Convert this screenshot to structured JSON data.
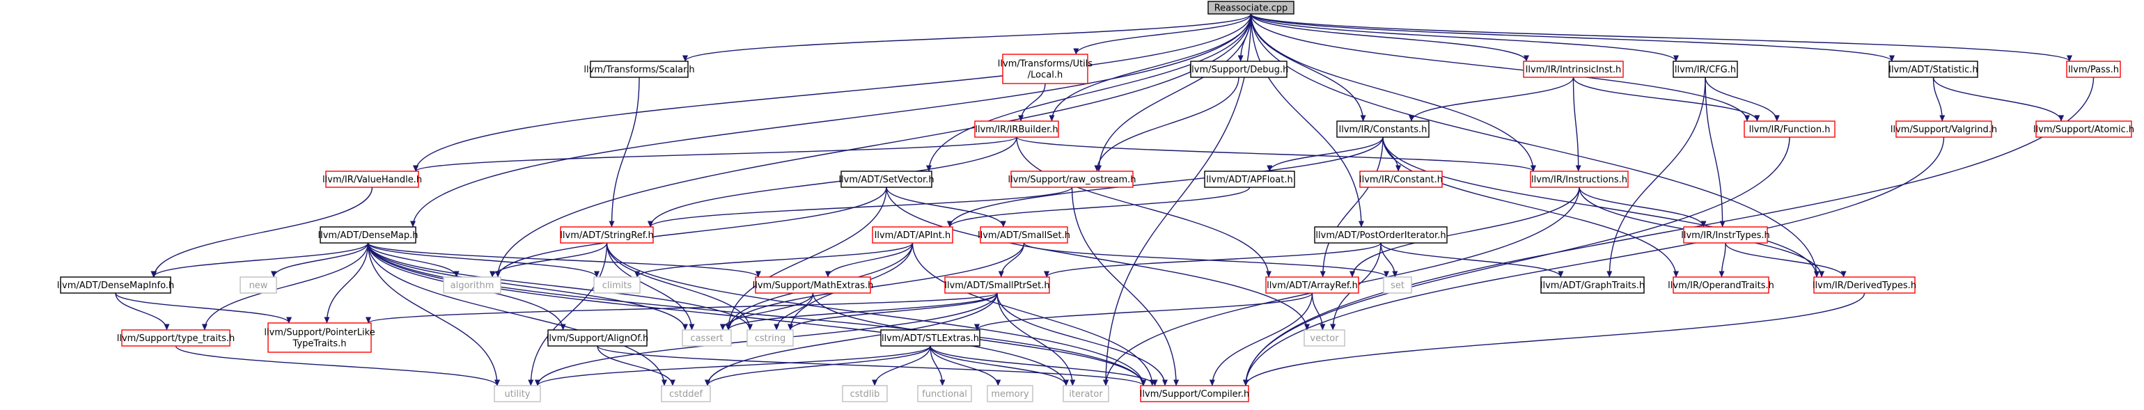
{
  "colors": {
    "edge": "#191970",
    "root_fill": "#bfbfbf",
    "border_black": "#000000",
    "border_red": "#ff0000",
    "border_grey": "#bfbfbf",
    "text_normal": "#000000",
    "text_grey": "#9a9a9a"
  },
  "nodes": [
    {
      "id": "root",
      "label": "Reassociate.cpp",
      "style": "root"
    },
    {
      "id": "scalar",
      "label": "llvm/Transforms/Scalar.h",
      "style": "black"
    },
    {
      "id": "local",
      "label": "llvm/Transforms/Utils/Local.h",
      "lines": [
        "llvm/Transforms/Utils",
        "/Local.h"
      ],
      "style": "red"
    },
    {
      "id": "debug",
      "label": "llvm/Support/Debug.h",
      "style": "black"
    },
    {
      "id": "intrinsic",
      "label": "llvm/IR/IntrinsicInst.h",
      "style": "red"
    },
    {
      "id": "cfg",
      "label": "llvm/IR/CFG.h",
      "style": "black"
    },
    {
      "id": "statistic",
      "label": "llvm/ADT/Statistic.h",
      "style": "black"
    },
    {
      "id": "pass",
      "label": "llvm/Pass.h",
      "style": "red"
    },
    {
      "id": "irbuilder",
      "label": "llvm/IR/IRBuilder.h",
      "style": "red"
    },
    {
      "id": "constants",
      "label": "llvm/IR/Constants.h",
      "style": "black"
    },
    {
      "id": "function",
      "label": "llvm/IR/Function.h",
      "style": "red"
    },
    {
      "id": "valgrind",
      "label": "llvm/Support/Valgrind.h",
      "style": "red"
    },
    {
      "id": "atomic",
      "label": "llvm/Support/Atomic.h",
      "style": "red"
    },
    {
      "id": "valuehandle",
      "label": "llvm/IR/ValueHandle.h",
      "style": "red"
    },
    {
      "id": "setvector",
      "label": "llvm/ADT/SetVector.h",
      "style": "black"
    },
    {
      "id": "rawostream",
      "label": "llvm/Support/raw_ostream.h",
      "style": "red"
    },
    {
      "id": "apfloat",
      "label": "llvm/ADT/APFloat.h",
      "style": "black"
    },
    {
      "id": "constant",
      "label": "llvm/IR/Constant.h",
      "style": "red"
    },
    {
      "id": "instructions",
      "label": "llvm/IR/Instructions.h",
      "style": "red"
    },
    {
      "id": "densemap",
      "label": "llvm/ADT/DenseMap.h",
      "style": "black"
    },
    {
      "id": "stringref",
      "label": "llvm/ADT/StringRef.h",
      "style": "red"
    },
    {
      "id": "apint",
      "label": "llvm/ADT/APInt.h",
      "style": "red"
    },
    {
      "id": "smallset",
      "label": "llvm/ADT/SmallSet.h",
      "style": "red"
    },
    {
      "id": "postorder",
      "label": "llvm/ADT/PostOrderIterator.h",
      "style": "black"
    },
    {
      "id": "instrtypes",
      "label": "llvm/IR/InstrTypes.h",
      "style": "red"
    },
    {
      "id": "densemapinfo",
      "label": "llvm/ADT/DenseMapInfo.h",
      "style": "black"
    },
    {
      "id": "new",
      "label": "new",
      "style": "grey"
    },
    {
      "id": "algorithm",
      "label": "algorithm",
      "style": "grey"
    },
    {
      "id": "climits",
      "label": "climits",
      "style": "grey"
    },
    {
      "id": "mathextras",
      "label": "llvm/Support/MathExtras.h",
      "style": "red"
    },
    {
      "id": "smallptrset",
      "label": "llvm/ADT/SmallPtrSet.h",
      "style": "red"
    },
    {
      "id": "arrayref",
      "label": "llvm/ADT/ArrayRef.h",
      "style": "red"
    },
    {
      "id": "set",
      "label": "set",
      "style": "grey"
    },
    {
      "id": "graphtraits",
      "label": "llvm/ADT/GraphTraits.h",
      "style": "black"
    },
    {
      "id": "operandtraits",
      "label": "llvm/IR/OperandTraits.h",
      "style": "red"
    },
    {
      "id": "derivedtypes",
      "label": "llvm/IR/DerivedTypes.h",
      "style": "red"
    },
    {
      "id": "typetraits",
      "label": "llvm/Support/type_traits.h",
      "style": "red"
    },
    {
      "id": "pointerlike",
      "label": "llvm/Support/PointerLikeTypeTraits.h",
      "lines": [
        "llvm/Support/PointerLike",
        "TypeTraits.h"
      ],
      "style": "red"
    },
    {
      "id": "cassert",
      "label": "cassert",
      "style": "grey"
    },
    {
      "id": "cstring",
      "label": "cstring",
      "style": "grey"
    },
    {
      "id": "vector",
      "label": "vector",
      "style": "grey"
    },
    {
      "id": "alignof",
      "label": "llvm/Support/AlignOf.h",
      "style": "black"
    },
    {
      "id": "stlextras",
      "label": "llvm/ADT/STLExtras.h",
      "style": "black"
    },
    {
      "id": "utility",
      "label": "utility",
      "style": "grey"
    },
    {
      "id": "cstddef",
      "label": "cstddef",
      "style": "grey"
    },
    {
      "id": "cstdlib",
      "label": "cstdlib",
      "style": "grey"
    },
    {
      "id": "functional",
      "label": "functional",
      "style": "grey"
    },
    {
      "id": "memory",
      "label": "memory",
      "style": "grey"
    },
    {
      "id": "iterator",
      "label": "iterator",
      "style": "grey"
    },
    {
      "id": "compiler",
      "label": "llvm/Support/Compiler.h",
      "style": "red"
    }
  ],
  "edges": [
    [
      "root",
      "scalar"
    ],
    [
      "root",
      "local"
    ],
    [
      "root",
      "debug"
    ],
    [
      "root",
      "intrinsic"
    ],
    [
      "root",
      "cfg"
    ],
    [
      "root",
      "statistic"
    ],
    [
      "root",
      "pass"
    ],
    [
      "root",
      "irbuilder"
    ],
    [
      "root",
      "constants"
    ],
    [
      "root",
      "function"
    ],
    [
      "root",
      "valuehandle"
    ],
    [
      "root",
      "setvector"
    ],
    [
      "root",
      "rawostream"
    ],
    [
      "root",
      "instructions"
    ],
    [
      "root",
      "densemap"
    ],
    [
      "root",
      "postorder"
    ],
    [
      "root",
      "derivedtypes"
    ],
    [
      "root",
      "algorithm"
    ],
    [
      "root",
      "iterator"
    ],
    [
      "scalar",
      "stringref"
    ],
    [
      "local",
      "irbuilder"
    ],
    [
      "debug",
      "rawostream"
    ],
    [
      "intrinsic",
      "constants"
    ],
    [
      "intrinsic",
      "function"
    ],
    [
      "intrinsic",
      "instructions"
    ],
    [
      "cfg",
      "function"
    ],
    [
      "cfg",
      "instrtypes"
    ],
    [
      "cfg",
      "graphtraits"
    ],
    [
      "statistic",
      "valgrind"
    ],
    [
      "statistic",
      "atomic"
    ],
    [
      "pass",
      "compiler"
    ],
    [
      "irbuilder",
      "valuehandle"
    ],
    [
      "irbuilder",
      "stringref"
    ],
    [
      "irbuilder",
      "instructions"
    ],
    [
      "irbuilder",
      "arrayref"
    ],
    [
      "constants",
      "apfloat"
    ],
    [
      "constants",
      "constant"
    ],
    [
      "constants",
      "apint"
    ],
    [
      "constants",
      "arrayref"
    ],
    [
      "constants",
      "derivedtypes"
    ],
    [
      "constants",
      "operandtraits"
    ],
    [
      "function",
      "compiler"
    ],
    [
      "valgrind",
      "compiler"
    ],
    [
      "valuehandle",
      "densemapinfo"
    ],
    [
      "setvector",
      "algorithm"
    ],
    [
      "setvector",
      "smallset"
    ],
    [
      "setvector",
      "cassert"
    ],
    [
      "setvector",
      "vector"
    ],
    [
      "rawostream",
      "stringref"
    ],
    [
      "rawostream",
      "compiler"
    ],
    [
      "apfloat",
      "apint"
    ],
    [
      "instructions",
      "instrtypes"
    ],
    [
      "instructions",
      "derivedtypes"
    ],
    [
      "instructions",
      "arrayref"
    ],
    [
      "instructions",
      "iterator"
    ],
    [
      "densemap",
      "densemapinfo"
    ],
    [
      "densemap",
      "typetraits"
    ],
    [
      "densemap",
      "mathextras"
    ],
    [
      "densemap",
      "alignof"
    ],
    [
      "densemap",
      "pointerlike"
    ],
    [
      "densemap",
      "algorithm"
    ],
    [
      "densemap",
      "new"
    ],
    [
      "densemap",
      "climits"
    ],
    [
      "densemap",
      "cassert"
    ],
    [
      "densemap",
      "cstring"
    ],
    [
      "densemap",
      "iterator"
    ],
    [
      "densemap",
      "utility"
    ],
    [
      "densemap",
      "cstddef"
    ],
    [
      "densemap",
      "compiler"
    ],
    [
      "stringref",
      "algorithm"
    ],
    [
      "stringref",
      "cassert"
    ],
    [
      "stringref",
      "cstring"
    ],
    [
      "stringref",
      "utility"
    ],
    [
      "stringref",
      "compiler"
    ],
    [
      "apint",
      "mathextras"
    ],
    [
      "apint",
      "climits"
    ],
    [
      "apint",
      "cassert"
    ],
    [
      "apint",
      "cstring"
    ],
    [
      "apint",
      "compiler"
    ],
    [
      "smallset",
      "smallptrset"
    ],
    [
      "smallset",
      "set"
    ],
    [
      "smallset",
      "cassert"
    ],
    [
      "postorder",
      "graphtraits"
    ],
    [
      "postorder",
      "smallptrset"
    ],
    [
      "postorder",
      "set"
    ],
    [
      "postorder",
      "vector"
    ],
    [
      "instrtypes",
      "operandtraits"
    ],
    [
      "instrtypes",
      "derivedtypes"
    ],
    [
      "densemapinfo",
      "typetraits"
    ],
    [
      "densemapinfo",
      "pointerlike"
    ],
    [
      "mathextras",
      "compiler"
    ],
    [
      "mathextras",
      "cassert"
    ],
    [
      "mathextras",
      "cstring"
    ],
    [
      "smallptrset",
      "pointerlike"
    ],
    [
      "smallptrset",
      "cassert"
    ],
    [
      "smallptrset",
      "cstring"
    ],
    [
      "smallptrset",
      "cstddef"
    ],
    [
      "smallptrset",
      "iterator"
    ],
    [
      "smallptrset",
      "utility"
    ],
    [
      "smallptrset",
      "compiler"
    ],
    [
      "arrayref",
      "stlextras"
    ],
    [
      "arrayref",
      "vector"
    ],
    [
      "arrayref",
      "compiler"
    ],
    [
      "derivedtypes",
      "compiler"
    ],
    [
      "typetraits",
      "utility"
    ],
    [
      "alignof",
      "cstddef"
    ],
    [
      "alignof",
      "compiler"
    ],
    [
      "stlextras",
      "utility"
    ],
    [
      "stlextras",
      "cstddef"
    ],
    [
      "stlextras",
      "cstdlib"
    ],
    [
      "stlextras",
      "functional"
    ],
    [
      "stlextras",
      "memory"
    ],
    [
      "stlextras",
      "iterator"
    ],
    [
      "stlextras",
      "compiler"
    ]
  ]
}
